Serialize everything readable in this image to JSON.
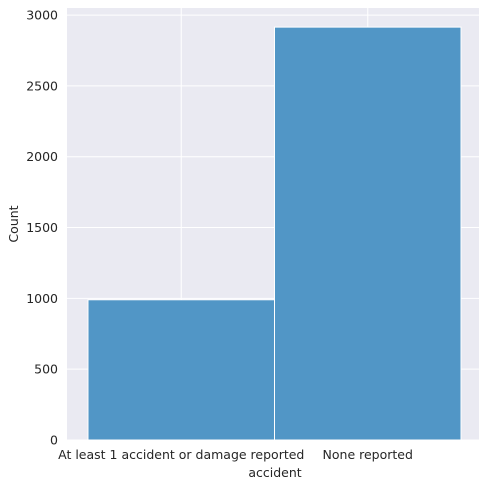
{
  "chart_data": {
    "type": "bar",
    "style": "histogram",
    "categories": [
      "At least 1 accident or damage reported",
      "None reported"
    ],
    "values": [
      990,
      2915
    ],
    "xlabel": "accident",
    "ylabel": "Count",
    "ylim": [
      0,
      3050
    ],
    "yticks": [
      0,
      500,
      1000,
      1500,
      2000,
      2500,
      3000
    ],
    "grid": true,
    "bar_color": "#4a92c4",
    "bar_edge_color": "#ffffff",
    "background_color": "#eaeaf2",
    "grid_color": "#ffffff"
  }
}
